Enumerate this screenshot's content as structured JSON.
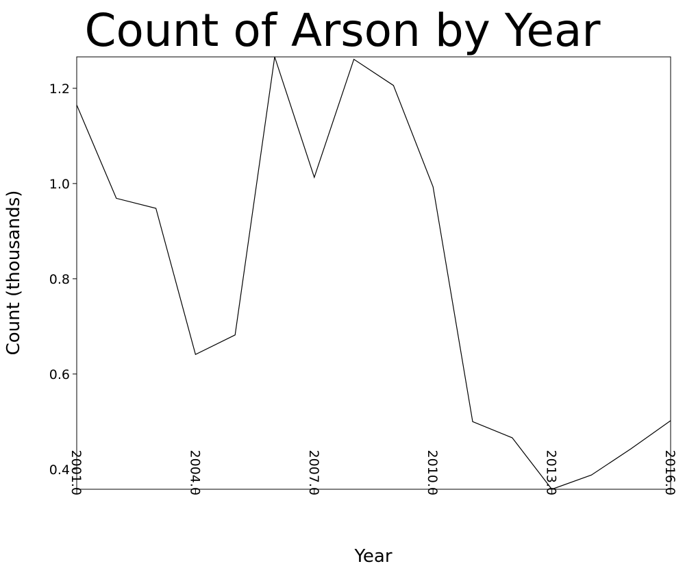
{
  "chart_data": {
    "type": "line",
    "title": "Count of Arson by Year",
    "xlabel": "Year",
    "ylabel": "Count (thousands)",
    "xlim": [
      2001,
      2016
    ],
    "ylim": [
      0.358,
      1.266
    ],
    "xticks": [
      2001,
      2004,
      2007,
      2010,
      2013,
      2016
    ],
    "xtick_labels": [
      "2001.0",
      "2004.0",
      "2007.0",
      "2010.0",
      "2013.0",
      "2016.0"
    ],
    "yticks": [
      0.4,
      0.6,
      0.8,
      1.0,
      1.2
    ],
    "ytick_labels": [
      "0.4",
      "0.6",
      "0.8",
      "1.0",
      "1.2"
    ],
    "grid": false,
    "legend": "none",
    "line_color": "#000000",
    "series": [
      {
        "x": [
          2001,
          2002,
          2003,
          2004,
          2005,
          2006,
          2007,
          2008,
          2009,
          2010,
          2011,
          2012,
          2013,
          2014,
          2015,
          2016
        ],
        "values": [
          1.165,
          0.969,
          0.948,
          0.641,
          0.682,
          1.266,
          1.013,
          1.261,
          1.206,
          0.993,
          0.5,
          0.466,
          0.358,
          0.388,
          0.443,
          0.502
        ]
      }
    ]
  }
}
